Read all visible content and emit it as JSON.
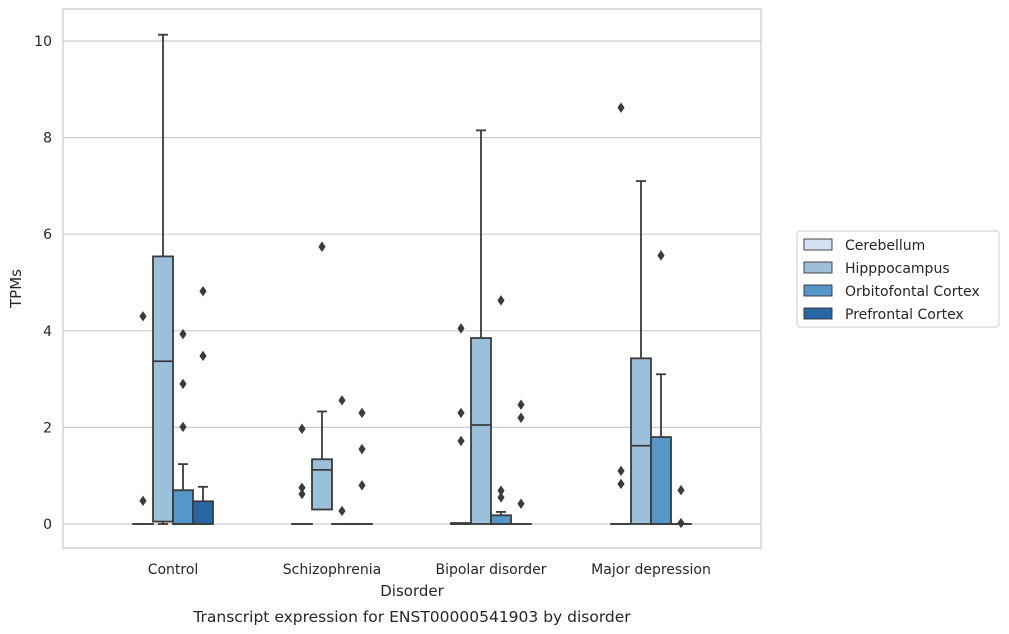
{
  "chart_data": {
    "type": "box",
    "caption": "Transcript expression for ENST00000541903 by disorder",
    "xlabel": "Disorder",
    "ylabel": "TPMs",
    "ylim": [
      -0.5,
      10.65
    ],
    "yticks": [
      0,
      2,
      4,
      6,
      8,
      10
    ],
    "ytick_labels": [
      "0",
      "2",
      "4",
      "6",
      "8",
      "10"
    ],
    "grid": true,
    "legend_position": "right",
    "categories": [
      "Control",
      "Schizophrenia",
      "Bipolar disorder",
      "Major depression"
    ],
    "series": [
      {
        "name": "Cerebellum",
        "color": "#d4e3f1",
        "boxes": [
          {
            "category": "Control",
            "whisker_low": 0,
            "q1": 0,
            "median": 0,
            "q3": 0,
            "whisker_high": 0,
            "outliers": [
              0.48,
              4.3
            ]
          },
          {
            "category": "Schizophrenia",
            "whisker_low": 0,
            "q1": 0,
            "median": 0,
            "q3": 0,
            "whisker_high": 0,
            "outliers": [
              0.62,
              0.75,
              1.97
            ]
          },
          {
            "category": "Bipolar disorder",
            "whisker_low": 0,
            "q1": 0,
            "median": 0,
            "q3": 0.02,
            "whisker_high": 0.02,
            "outliers": [
              1.72,
              2.3,
              4.05
            ]
          },
          {
            "category": "Major depression",
            "whisker_low": 0,
            "q1": 0,
            "median": 0,
            "q3": 0,
            "whisker_high": 0,
            "outliers": [
              0.83,
              1.1,
              8.62
            ]
          }
        ]
      },
      {
        "name": "Hipppocampus",
        "color": "#9ac0da",
        "boxes": [
          {
            "category": "Control",
            "whisker_low": 0,
            "q1": 0.05,
            "median": 3.37,
            "q3": 5.54,
            "whisker_high": 10.13,
            "outliers": []
          },
          {
            "category": "Schizophrenia",
            "whisker_low": 0.3,
            "q1": 0.3,
            "median": 1.12,
            "q3": 1.34,
            "whisker_high": 2.33,
            "outliers": [
              5.74
            ]
          },
          {
            "category": "Bipolar disorder",
            "whisker_low": 0,
            "q1": 0,
            "median": 2.05,
            "q3": 3.85,
            "whisker_high": 8.15,
            "outliers": []
          },
          {
            "category": "Major depression",
            "whisker_low": 0,
            "q1": 0,
            "median": 1.62,
            "q3": 3.43,
            "whisker_high": 7.1,
            "outliers": []
          }
        ]
      },
      {
        "name": "Orbitofontal Cortex",
        "color": "#5597c8",
        "boxes": [
          {
            "category": "Control",
            "whisker_low": 0,
            "q1": 0,
            "median": 0,
            "q3": 0.7,
            "whisker_high": 1.24,
            "outliers": [
              2.01,
              2.9,
              3.93
            ]
          },
          {
            "category": "Schizophrenia",
            "whisker_low": 0,
            "q1": 0,
            "median": 0,
            "q3": 0,
            "whisker_high": 0,
            "outliers": [
              0.27,
              2.56
            ]
          },
          {
            "category": "Bipolar disorder",
            "whisker_low": 0,
            "q1": 0,
            "median": 0,
            "q3": 0.18,
            "whisker_high": 0.25,
            "outliers": [
              0.55,
              0.69,
              4.63
            ]
          },
          {
            "category": "Major depression",
            "whisker_low": 0,
            "q1": 0,
            "median": 0,
            "q3": 1.8,
            "whisker_high": 3.1,
            "outliers": [
              5.56
            ]
          }
        ]
      },
      {
        "name": "Prefrontal Cortex",
        "color": "#2666a5",
        "boxes": [
          {
            "category": "Control",
            "whisker_low": 0,
            "q1": 0,
            "median": 0,
            "q3": 0.47,
            "whisker_high": 0.77,
            "outliers": [
              3.48,
              4.82
            ]
          },
          {
            "category": "Schizophrenia",
            "whisker_low": 0,
            "q1": 0,
            "median": 0,
            "q3": 0,
            "whisker_high": 0,
            "outliers": [
              0.8,
              1.55,
              2.3
            ]
          },
          {
            "category": "Bipolar disorder",
            "whisker_low": 0,
            "q1": 0,
            "median": 0,
            "q3": 0,
            "whisker_high": 0,
            "outliers": [
              0.42,
              2.2,
              2.47
            ]
          },
          {
            "category": "Major depression",
            "whisker_low": 0,
            "q1": 0,
            "median": 0,
            "q3": 0,
            "whisker_high": 0,
            "outliers": [
              0.02,
              0.7
            ]
          }
        ]
      }
    ]
  }
}
